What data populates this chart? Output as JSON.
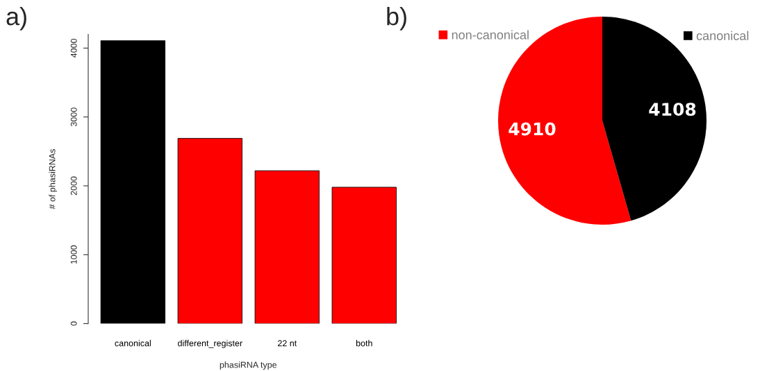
{
  "chart_data": [
    {
      "type": "bar",
      "title": "a)",
      "xlabel": "phasiRNA type",
      "ylabel": "# of phasiRNAs",
      "categories": [
        "canonical",
        "different_register",
        "22 nt",
        "both"
      ],
      "values": [
        4108,
        2690,
        2220,
        1980
      ],
      "colors": [
        "#000000",
        "#ff0000",
        "#ff0000",
        "#ff0000"
      ],
      "ylim": [
        0,
        4200
      ],
      "yticks": [
        0,
        1000,
        2000,
        3000,
        4000
      ]
    },
    {
      "type": "pie",
      "title": "b)",
      "categories": [
        "non-canonical",
        "canonical"
      ],
      "values": [
        4910,
        4108
      ],
      "colors": [
        "#ff0000",
        "#000000"
      ],
      "data_labels": true,
      "legend": "top"
    }
  ]
}
